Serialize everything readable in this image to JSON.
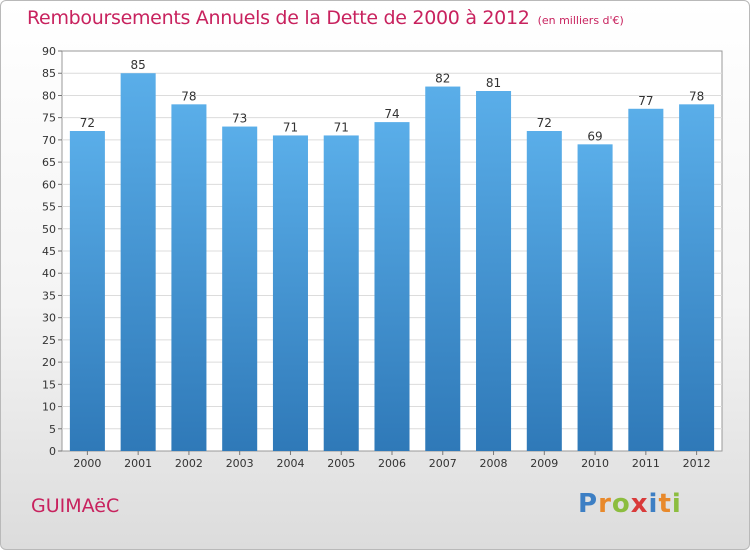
{
  "header": {
    "title": "Remboursements Annuels de la Dette de 2000 à 2012",
    "subtitle": "(en milliers d'€)"
  },
  "footer": {
    "commune": "GUIMAëC",
    "logo_letters": [
      "P",
      "r",
      "o",
      "x",
      "i",
      "t",
      "i"
    ],
    "logo_colors": [
      "#3d7fc4",
      "#e8892b",
      "#8cbd3f",
      "#d93a3a",
      "#3d7fc4",
      "#e8892b",
      "#8cbd3f"
    ]
  },
  "chart_data": {
    "type": "bar",
    "title": "Remboursements Annuels de la Dette de 2000 à 2012",
    "subtitle": "(en milliers d'€)",
    "categories": [
      "2000",
      "2001",
      "2002",
      "2003",
      "2004",
      "2005",
      "2006",
      "2007",
      "2008",
      "2009",
      "2010",
      "2011",
      "2012"
    ],
    "values": [
      72,
      85,
      78,
      73,
      71,
      71,
      74,
      82,
      81,
      72,
      69,
      77,
      78
    ],
    "ylim": [
      0,
      90
    ],
    "yticks": [
      0,
      5,
      10,
      15,
      20,
      25,
      30,
      35,
      40,
      45,
      50,
      55,
      60,
      65,
      70,
      75,
      80,
      85,
      90
    ],
    "grid": true,
    "xlabel": "",
    "ylabel": "",
    "bar_color_top": "#5aaee9",
    "bar_color_bottom": "#2f79b8"
  }
}
